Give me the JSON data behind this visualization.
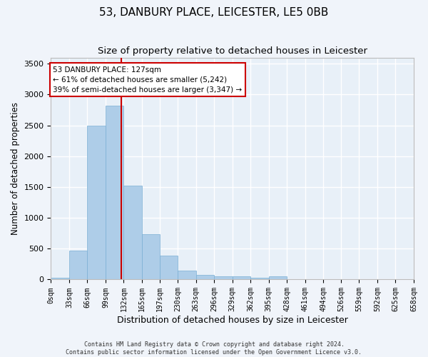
{
  "title": "53, DANBURY PLACE, LEICESTER, LE5 0BB",
  "subtitle": "Size of property relative to detached houses in Leicester",
  "xlabel": "Distribution of detached houses by size in Leicester",
  "ylabel": "Number of detached properties",
  "footer_line1": "Contains HM Land Registry data © Crown copyright and database right 2024.",
  "footer_line2": "Contains public sector information licensed under the Open Government Licence v3.0.",
  "bar_color": "#aecde8",
  "bar_edge_color": "#7aafd4",
  "background_color": "#e8f0f8",
  "grid_color": "#ffffff",
  "bar_left_edges": [
    0,
    33,
    66,
    99,
    132,
    165,
    197,
    230,
    263,
    296,
    329,
    362,
    395,
    428,
    461,
    494,
    526,
    559,
    592,
    625
  ],
  "bar_widths": [
    33,
    33,
    33,
    33,
    33,
    32,
    33,
    33,
    33,
    33,
    33,
    33,
    33,
    33,
    33,
    32,
    33,
    33,
    33,
    33
  ],
  "bar_heights": [
    28,
    470,
    2500,
    2820,
    1520,
    740,
    390,
    140,
    70,
    55,
    55,
    30,
    55,
    0,
    0,
    0,
    0,
    0,
    0,
    0
  ],
  "x_tick_labels": [
    "0sqm",
    "33sqm",
    "66sqm",
    "99sqm",
    "132sqm",
    "165sqm",
    "197sqm",
    "230sqm",
    "263sqm",
    "296sqm",
    "329sqm",
    "362sqm",
    "395sqm",
    "428sqm",
    "461sqm",
    "494sqm",
    "526sqm",
    "559sqm",
    "592sqm",
    "625sqm",
    "658sqm"
  ],
  "x_tick_positions": [
    0,
    33,
    66,
    99,
    132,
    165,
    197,
    230,
    263,
    296,
    329,
    362,
    395,
    428,
    461,
    494,
    526,
    559,
    592,
    625,
    658
  ],
  "ylim": [
    0,
    3600
  ],
  "xlim": [
    0,
    658
  ],
  "property_size": 127,
  "vline_color": "#cc0000",
  "annotation_text": "53 DANBURY PLACE: 127sqm\n← 61% of detached houses are smaller (5,242)\n39% of semi-detached houses are larger (3,347) →",
  "annotation_box_color": "#ffffff",
  "annotation_box_edge_color": "#cc0000",
  "ytick_values": [
    0,
    500,
    1000,
    1500,
    2000,
    2500,
    3000,
    3500
  ],
  "title_fontsize": 11,
  "subtitle_fontsize": 9.5,
  "annotation_fontsize": 7.5,
  "axis_label_fontsize": 8.5,
  "tick_fontsize": 7,
  "footer_fontsize": 6
}
